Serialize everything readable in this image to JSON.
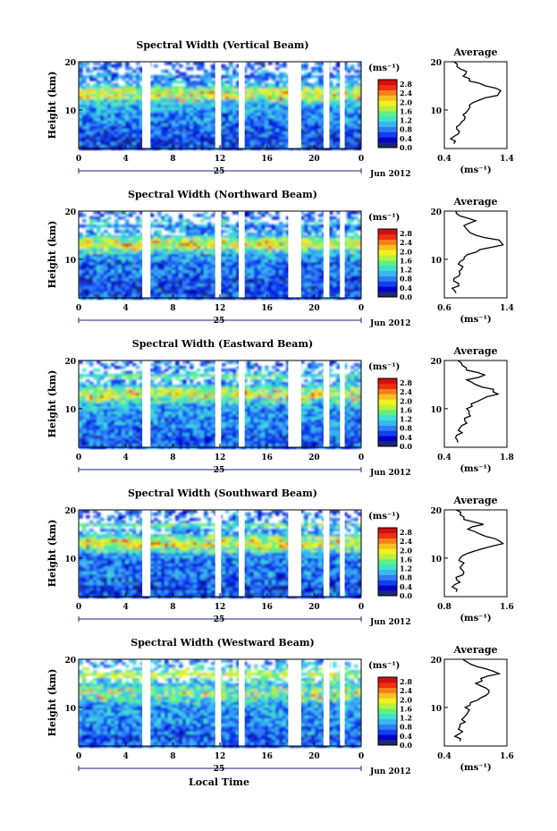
{
  "figure": {
    "xlabel": "Local Time",
    "date_label": "Jun 2012",
    "day_label": "25",
    "colorbar_unit": "(ms⁻¹)",
    "colorbar_ticks": [
      "0.0",
      "0.4",
      "0.8",
      "1.2",
      "1.6",
      "2.0",
      "2.4",
      "2.8"
    ],
    "colorbar_range": [
      0.0,
      3.0
    ],
    "colors": [
      "#1b2a70",
      "#0000c8",
      "#1040f0",
      "#2f7df5",
      "#38b6f0",
      "#3fe0d0",
      "#60f080",
      "#b8f040",
      "#f0f020",
      "#f8c020",
      "#f88018",
      "#f03010",
      "#d01010"
    ],
    "time_ticks": [
      "0",
      "4",
      "8",
      "12",
      "16",
      "20",
      "0"
    ],
    "time_range": [
      0,
      24
    ],
    "height_ticks": [
      "10",
      "20"
    ],
    "height_range": [
      2,
      20
    ],
    "ylabel": "Height (km)",
    "avg_title": "Average",
    "avg_unit": "(ms⁻¹)",
    "data_gaps_hours": [
      [
        5.4,
        6.1
      ],
      [
        11.6,
        12.1
      ],
      [
        13.6,
        14.1
      ],
      [
        17.8,
        18.9
      ],
      [
        20.8,
        21.3
      ],
      [
        22.2,
        22.6
      ]
    ]
  },
  "chart_data": [
    {
      "type": "heatmap",
      "title": "Spectral Width (Vertical Beam)",
      "ylabel": "Height (km)",
      "avg_xticks": [
        "0.4",
        "1.4"
      ],
      "avg_xlim": [
        0.4,
        1.4
      ],
      "avg_profile": {
        "height": [
          3,
          4,
          5,
          6,
          7,
          8,
          9,
          10,
          11,
          12,
          13,
          14,
          15,
          16,
          17,
          18,
          19,
          20
        ],
        "value": [
          0.55,
          0.5,
          0.62,
          0.6,
          0.65,
          0.72,
          0.7,
          0.78,
          0.8,
          0.95,
          1.25,
          1.3,
          1.05,
          0.8,
          0.7,
          0.75,
          0.6,
          0.55
        ]
      }
    },
    {
      "type": "heatmap",
      "title": "Spectral Width (Northward Beam)",
      "ylabel": "Height (km)",
      "avg_xticks": [
        "0.6",
        "1.4"
      ],
      "avg_xlim": [
        0.6,
        1.4
      ],
      "avg_profile": {
        "height": [
          3,
          4,
          5,
          6,
          7,
          8,
          9,
          10,
          11,
          12,
          13,
          14,
          15,
          16,
          17,
          18,
          19,
          20
        ],
        "value": [
          0.75,
          0.7,
          0.78,
          0.72,
          0.8,
          0.82,
          0.78,
          0.85,
          0.9,
          1.05,
          1.35,
          1.3,
          1.0,
          0.9,
          0.85,
          1.0,
          0.8,
          0.75
        ]
      }
    },
    {
      "type": "heatmap",
      "title": "Spectral Width (Eastward Beam)",
      "ylabel": "Height (km)",
      "avg_xticks": [
        "0.4",
        "1.8"
      ],
      "avg_xlim": [
        0.4,
        1.8
      ],
      "avg_profile": {
        "height": [
          3,
          4,
          5,
          6,
          7,
          8,
          9,
          10,
          11,
          12,
          13,
          14,
          15,
          16,
          17,
          18,
          19,
          20
        ],
        "value": [
          0.7,
          0.65,
          0.8,
          0.75,
          0.9,
          0.85,
          0.95,
          0.9,
          1.0,
          1.25,
          1.6,
          1.5,
          1.1,
          0.9,
          1.3,
          0.9,
          0.8,
          0.7
        ]
      }
    },
    {
      "type": "heatmap",
      "title": "Spectral Width (Southward Beam)",
      "ylabel": "Height (km)",
      "avg_xticks": [
        "0.8",
        "1.6"
      ],
      "avg_xlim": [
        0.8,
        1.6
      ],
      "avg_profile": {
        "height": [
          3,
          4,
          5,
          6,
          7,
          8,
          9,
          10,
          11,
          12,
          13,
          14,
          15,
          16,
          17,
          18,
          19,
          20
        ],
        "value": [
          0.95,
          0.9,
          1.0,
          0.95,
          1.05,
          1.0,
          1.05,
          1.0,
          1.1,
          1.3,
          1.55,
          1.45,
          1.25,
          1.1,
          1.3,
          1.05,
          1.0,
          0.95
        ]
      }
    },
    {
      "type": "heatmap",
      "title": "Spectral Width (Westward Beam)",
      "ylabel": "Height (km)",
      "avg_xticks": [
        "0.4",
        "1.6"
      ],
      "avg_xlim": [
        0.4,
        1.6
      ],
      "avg_profile": {
        "height": [
          3,
          4,
          5,
          6,
          7,
          8,
          9,
          10,
          11,
          12,
          13,
          14,
          15,
          16,
          17,
          18,
          19,
          20
        ],
        "value": [
          0.7,
          0.6,
          0.75,
          0.7,
          0.8,
          0.78,
          0.85,
          0.8,
          0.9,
          1.1,
          1.25,
          1.2,
          1.0,
          1.1,
          1.45,
          1.2,
          0.9,
          0.75
        ]
      }
    }
  ]
}
